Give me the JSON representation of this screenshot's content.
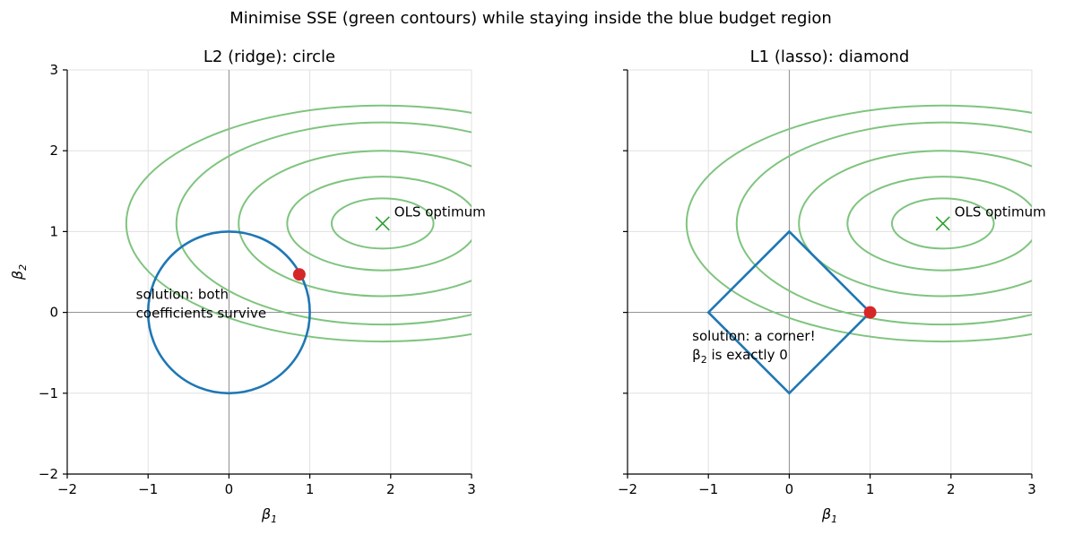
{
  "figure": {
    "suptitle": "Minimise SSE (green contours) while staying inside the blue budget region"
  },
  "colors": {
    "contour": "#7fc47f",
    "budget": "#1f77b4",
    "solution": "#d62728",
    "ols_marker": "#2ca02c"
  },
  "chart_data": [
    {
      "type": "contour",
      "title": "L2 (ridge): circle",
      "xlabel": "β1",
      "ylabel": "β2",
      "xlim": [
        -2,
        3
      ],
      "ylim": [
        -2,
        3
      ],
      "xticks": [
        -2,
        -1,
        0,
        1,
        2,
        3
      ],
      "yticks": [
        -2,
        -1,
        0,
        1,
        2,
        3
      ],
      "xtick_labels": [
        "−2",
        "−1",
        "0",
        "1",
        "2",
        "3"
      ],
      "ytick_labels": [
        "−2",
        "−1",
        "0",
        "1",
        "2",
        "3"
      ],
      "grid": true,
      "ols_optimum": {
        "x": 1.9,
        "y": 1.1,
        "label": "OLS optimum"
      },
      "contours": {
        "center": [
          1.9,
          1.1
        ],
        "semi_axes_x": [
          0.63,
          1.18,
          1.78,
          2.55,
          3.17
        ],
        "semi_axes_y": [
          0.31,
          0.58,
          0.9,
          1.25,
          1.46
        ]
      },
      "budget_region": {
        "shape": "circle",
        "radius": 1
      },
      "solution": {
        "x": 0.87,
        "y": 0.47
      },
      "annotation": {
        "x": -1.15,
        "y": 0.17,
        "lines": [
          "solution: both",
          "coefficients survive"
        ]
      }
    },
    {
      "type": "contour",
      "title": "L1 (lasso): diamond",
      "xlabel": "β1",
      "ylabel": "",
      "xlim": [
        -2,
        3
      ],
      "ylim": [
        -2,
        3
      ],
      "xticks": [
        -2,
        -1,
        0,
        1,
        2,
        3
      ],
      "yticks": [
        -2,
        -1,
        0,
        1,
        2,
        3
      ],
      "xtick_labels": [
        "−2",
        "−1",
        "0",
        "1",
        "2",
        "3"
      ],
      "ytick_labels": [],
      "grid": true,
      "ols_optimum": {
        "x": 1.9,
        "y": 1.1,
        "label": "OLS optimum"
      },
      "contours": {
        "center": [
          1.9,
          1.1
        ],
        "semi_axes_x": [
          0.63,
          1.18,
          1.78,
          2.55,
          3.17
        ],
        "semi_axes_y": [
          0.31,
          0.58,
          0.9,
          1.25,
          1.46
        ]
      },
      "budget_region": {
        "shape": "diamond",
        "radius": 1
      },
      "solution": {
        "x": 1.0,
        "y": 0.0
      },
      "annotation": {
        "x": -1.2,
        "y": -0.35,
        "lines": [
          "solution: a corner!",
          "β2 is exactly 0"
        ]
      }
    }
  ]
}
